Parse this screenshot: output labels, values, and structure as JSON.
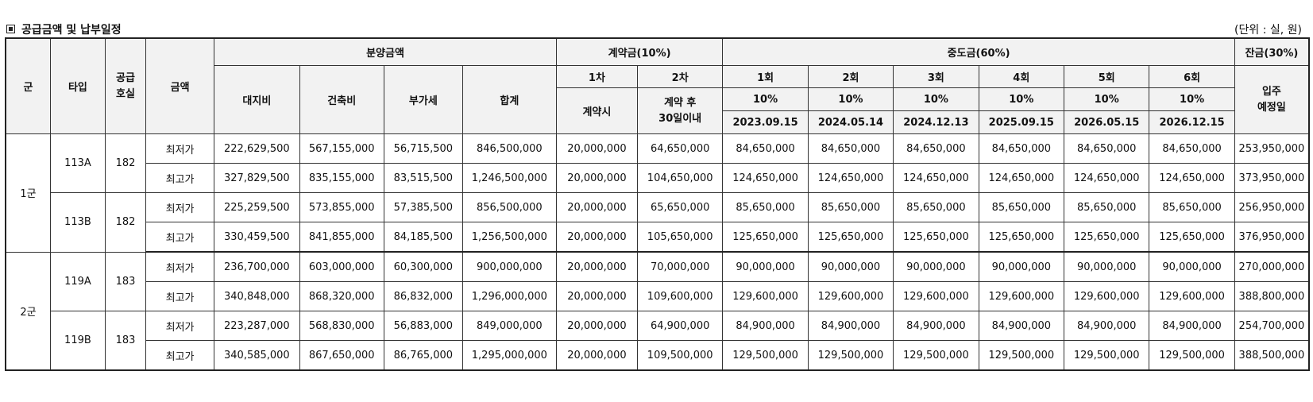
{
  "title": "공급금액 및 납부일정",
  "unit_note": "(단위 : 실, 원)",
  "headers": {
    "group": "군",
    "type": "타입",
    "supply_units": "공급호실",
    "amount": "금액",
    "sale_price": "분양금액",
    "land": "대지비",
    "building": "건축비",
    "vat": "부가세",
    "total": "합계",
    "contract": "계약금(10%)",
    "contract_1": "1차",
    "contract_2": "2차",
    "contract_1_when": "계약시",
    "contract_2_when": "계약 후\n30일이내",
    "middle": "중도금(60%)",
    "middle_rounds": [
      "1회",
      "2회",
      "3회",
      "4회",
      "5회",
      "6회"
    ],
    "middle_pct": [
      "10%",
      "10%",
      "10%",
      "10%",
      "10%",
      "10%"
    ],
    "middle_dates": [
      "2023.09.15",
      "2024.05.14",
      "2024.12.13",
      "2025.09.15",
      "2026.05.15",
      "2026.12.15"
    ],
    "balance": "잔금(30%)",
    "balance_when": "입주\n예정일"
  },
  "groups": [
    {
      "name": "1군",
      "types": [
        {
          "type": "113A",
          "units": "182",
          "rows": [
            {
              "label": "최저가",
              "land": "222,629,500",
              "building": "567,155,000",
              "vat": "56,715,500",
              "total": "846,500,000",
              "c1": "20,000,000",
              "c2": "64,650,000",
              "m": [
                "84,650,000",
                "84,650,000",
                "84,650,000",
                "84,650,000",
                "84,650,000",
                "84,650,000"
              ],
              "bal": "253,950,000"
            },
            {
              "label": "최고가",
              "land": "327,829,500",
              "building": "835,155,000",
              "vat": "83,515,500",
              "total": "1,246,500,000",
              "c1": "20,000,000",
              "c2": "104,650,000",
              "m": [
                "124,650,000",
                "124,650,000",
                "124,650,000",
                "124,650,000",
                "124,650,000",
                "124,650,000"
              ],
              "bal": "373,950,000"
            }
          ]
        },
        {
          "type": "113B",
          "units": "182",
          "rows": [
            {
              "label": "최저가",
              "land": "225,259,500",
              "building": "573,855,000",
              "vat": "57,385,500",
              "total": "856,500,000",
              "c1": "20,000,000",
              "c2": "65,650,000",
              "m": [
                "85,650,000",
                "85,650,000",
                "85,650,000",
                "85,650,000",
                "85,650,000",
                "85,650,000"
              ],
              "bal": "256,950,000"
            },
            {
              "label": "최고가",
              "land": "330,459,500",
              "building": "841,855,000",
              "vat": "84,185,500",
              "total": "1,256,500,000",
              "c1": "20,000,000",
              "c2": "105,650,000",
              "m": [
                "125,650,000",
                "125,650,000",
                "125,650,000",
                "125,650,000",
                "125,650,000",
                "125,650,000"
              ],
              "bal": "376,950,000"
            }
          ]
        }
      ]
    },
    {
      "name": "2군",
      "types": [
        {
          "type": "119A",
          "units": "183",
          "rows": [
            {
              "label": "최저가",
              "land": "236,700,000",
              "building": "603,000,000",
              "vat": "60,300,000",
              "total": "900,000,000",
              "c1": "20,000,000",
              "c2": "70,000,000",
              "m": [
                "90,000,000",
                "90,000,000",
                "90,000,000",
                "90,000,000",
                "90,000,000",
                "90,000,000"
              ],
              "bal": "270,000,000"
            },
            {
              "label": "최고가",
              "land": "340,848,000",
              "building": "868,320,000",
              "vat": "86,832,000",
              "total": "1,296,000,000",
              "c1": "20,000,000",
              "c2": "109,600,000",
              "m": [
                "129,600,000",
                "129,600,000",
                "129,600,000",
                "129,600,000",
                "129,600,000",
                "129,600,000"
              ],
              "bal": "388,800,000"
            }
          ]
        },
        {
          "type": "119B",
          "units": "183",
          "rows": [
            {
              "label": "최저가",
              "land": "223,287,000",
              "building": "568,830,000",
              "vat": "56,883,000",
              "total": "849,000,000",
              "c1": "20,000,000",
              "c2": "64,900,000",
              "m": [
                "84,900,000",
                "84,900,000",
                "84,900,000",
                "84,900,000",
                "84,900,000",
                "84,900,000"
              ],
              "bal": "254,700,000"
            },
            {
              "label": "최고가",
              "land": "340,585,000",
              "building": "867,650,000",
              "vat": "86,765,000",
              "total": "1,295,000,000",
              "c1": "20,000,000",
              "c2": "109,500,000",
              "m": [
                "129,500,000",
                "129,500,000",
                "129,500,000",
                "129,500,000",
                "129,500,000",
                "129,500,000"
              ],
              "bal": "388,500,000"
            }
          ]
        }
      ]
    }
  ]
}
